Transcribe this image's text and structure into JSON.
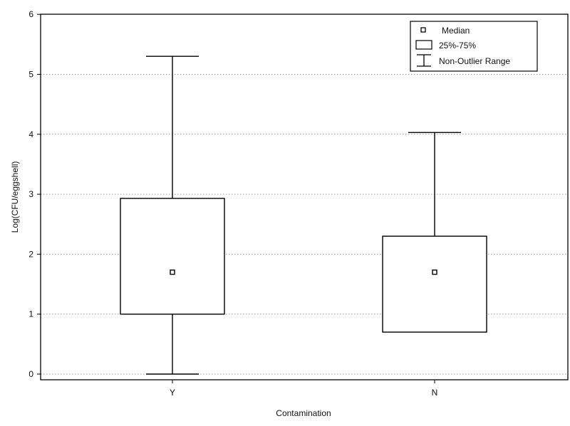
{
  "chart_data": {
    "type": "box",
    "title": "",
    "xlabel": "Contamination",
    "ylabel": "Log(CFU/eggshell)",
    "ylim": [
      0,
      6
    ],
    "yticks": [
      "0",
      "1",
      "2",
      "3",
      "4",
      "5",
      "6"
    ],
    "grid": true,
    "legend_position": "top-right",
    "legend": {
      "median": "Median",
      "box": "25%-75%",
      "whisker": "Non-Outlier Range"
    },
    "categories": [
      "Y",
      "N"
    ],
    "boxes": [
      {
        "category": "Y",
        "whisker_low": 0.0,
        "q1": 1.0,
        "median": 1.7,
        "q3": 2.93,
        "whisker_high": 5.3
      },
      {
        "category": "N",
        "whisker_low": 0.7,
        "q1": 0.7,
        "median": 1.7,
        "q3": 2.3,
        "whisker_high": 4.03
      }
    ]
  }
}
